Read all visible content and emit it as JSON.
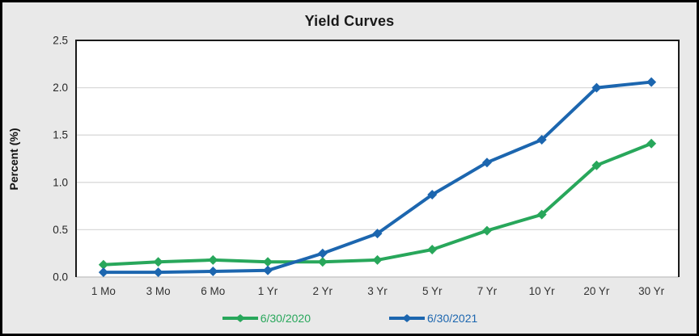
{
  "chart_data": {
    "type": "line",
    "title": "Yield Curves",
    "xlabel": "",
    "ylabel": "Percent (%)",
    "categories": [
      "1 Mo",
      "3 Mo",
      "6 Mo",
      "1 Yr",
      "2 Yr",
      "3 Yr",
      "5 Yr",
      "7 Yr",
      "10 Yr",
      "20 Yr",
      "30 Yr"
    ],
    "series": [
      {
        "name": "6/30/2020",
        "color": "#28a75b",
        "marker": "diamond",
        "values": [
          0.13,
          0.16,
          0.18,
          0.16,
          0.16,
          0.18,
          0.29,
          0.49,
          0.66,
          1.18,
          1.41
        ]
      },
      {
        "name": "6/30/2021",
        "color": "#1c66af",
        "marker": "diamond",
        "values": [
          0.05,
          0.05,
          0.06,
          0.07,
          0.25,
          0.46,
          0.87,
          1.21,
          1.45,
          2.0,
          2.06
        ]
      }
    ],
    "ylim": [
      0,
      2.5
    ],
    "ytick_values": [
      0,
      0.5,
      1.0,
      1.5,
      2.0,
      2.5
    ],
    "ytick_labels": [
      "0.0",
      "0.5",
      "1.0",
      "1.5",
      "2.0",
      "2.5"
    ],
    "grid": "horizontal",
    "legend_position": "bottom",
    "colors": {
      "panel_background": "#e9e9e9",
      "plot_background": "#ffffff",
      "grid_line": "#d9d9d9",
      "plot_border": "#1a1a1a",
      "baseline": "#c9c9c9",
      "tick_label": "#262626",
      "title": "#1a1a1a"
    }
  }
}
